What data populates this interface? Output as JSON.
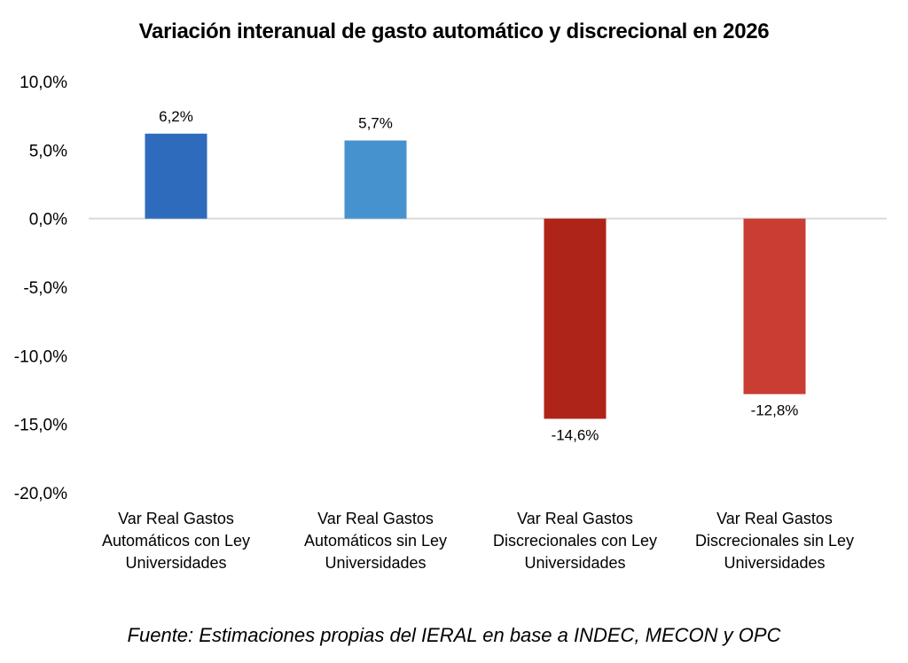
{
  "chart_data": {
    "type": "bar",
    "title": "Variación interanual de gasto automático y discrecional en 2026",
    "xlabel": "",
    "ylabel": "",
    "ylim": [
      -20,
      10
    ],
    "yticks": [
      10,
      5,
      0,
      -5,
      -10,
      -15,
      -20
    ],
    "ytick_labels": [
      "10,0%",
      "5,0%",
      "0,0%",
      "-5,0%",
      "-10,0%",
      "-15,0%",
      "-20,0%"
    ],
    "grid": false,
    "legend": "none",
    "categories": [
      [
        "Var Real Gastos",
        "Automáticos con Ley",
        "Universidades"
      ],
      [
        "Var Real Gastos",
        "Automáticos sin Ley",
        "Universidades"
      ],
      [
        "Var Real Gastos",
        "Discrecionales con Ley",
        "Universidades"
      ],
      [
        "Var Real Gastos",
        "Discrecionales sin Ley",
        "Universidades"
      ]
    ],
    "values": [
      6.2,
      5.7,
      -14.6,
      -12.8
    ],
    "data_labels": [
      "6,2%",
      "5,7%",
      "-14,6%",
      "-12,8%"
    ],
    "colors": [
      "#2e6bbd",
      "#4592cf",
      "#ae2418",
      "#c93d33"
    ],
    "source": "Fuente: Estimaciones propias del IERAL en base a INDEC, MECON y OPC"
  },
  "colors": {
    "zero_line": "#d9d9d9"
  }
}
